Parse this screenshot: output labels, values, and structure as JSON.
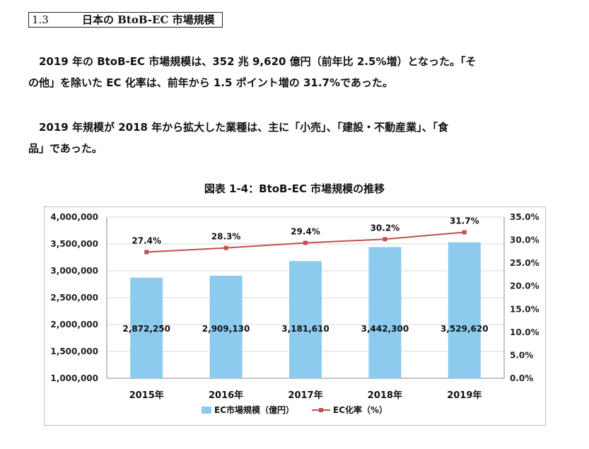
{
  "section": {
    "number": "1.3",
    "title": "日本の BtoB-EC 市場規模"
  },
  "paragraphs": [
    {
      "lines": [
        "　2019 年の BtoB-EC 市場規模は、352 兆 9,620 億円（前年比 2.5%増）となった。「そ",
        "の他」を除いた EC 化率は、前年から 1.5 ポイント増の 31.7%であった。"
      ]
    },
    {
      "lines": [
        "　2019 年規模が 2018 年から拡大した業種は、主に「小売」、「建設・不動産業」、「食",
        "品」であった。"
      ]
    }
  ],
  "figure_title": "図表 1-4：BtoB-EC 市場規模の推移",
  "chart_data": {
    "type": "bar+line",
    "categories": [
      "2015年",
      "2016年",
      "2017年",
      "2018年",
      "2019年"
    ],
    "series": [
      {
        "name": "EC市場規模（億円）",
        "type": "bar",
        "axis": "left",
        "values": [
          2872250,
          2909130,
          3181610,
          3442300,
          3529620
        ],
        "labels": [
          "2,872,250",
          "2,909,130",
          "3,181,610",
          "3,442,300",
          "3,529,620"
        ],
        "color": "#8ccbee"
      },
      {
        "name": "EC化率（%）",
        "type": "line",
        "axis": "right",
        "values": [
          27.4,
          28.3,
          29.4,
          30.2,
          31.7
        ],
        "labels": [
          "27.4%",
          "28.3%",
          "29.4%",
          "30.2%",
          "31.7%"
        ],
        "color": "#c0504d"
      }
    ],
    "left_axis": {
      "min": 1000000,
      "max": 4000000,
      "step": 500000,
      "ticks": [
        "1,000,000",
        "1,500,000",
        "2,000,000",
        "2,500,000",
        "3,000,000",
        "3,500,000",
        "4,000,000"
      ]
    },
    "right_axis": {
      "min": 0,
      "max": 35,
      "step": 5,
      "ticks": [
        "0.0%",
        "5.0%",
        "10.0%",
        "15.0%",
        "20.0%",
        "25.0%",
        "30.0%",
        "35.0%"
      ]
    },
    "grid": true,
    "legend": "bottom",
    "legend_entries": [
      "EC市場規模（億円）",
      "EC化率（%）"
    ]
  }
}
